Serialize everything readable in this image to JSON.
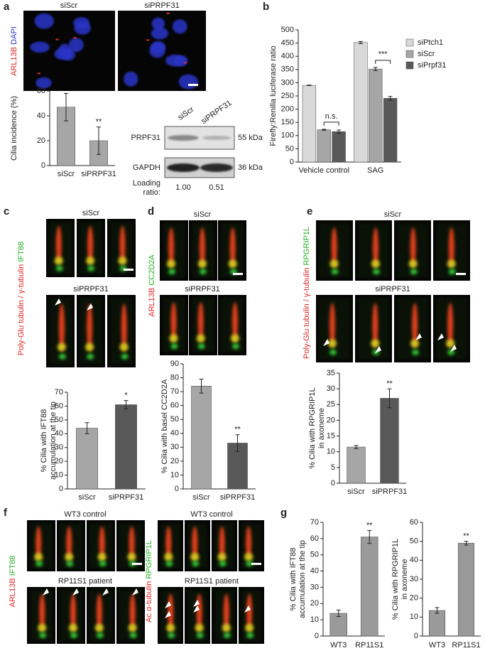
{
  "figure": {
    "a": {
      "letter": "a",
      "stain": [
        "ARL13B",
        "DAPI"
      ],
      "conditions": [
        "siScr",
        "siPRPF31"
      ],
      "blot": {
        "lanes": [
          "siScr",
          "siPRPF31"
        ],
        "rows": [
          [
            "PRPF31",
            "55 kDa"
          ],
          [
            "GAPDH",
            "36 kDa"
          ]
        ],
        "ratio_label": [
          "Loading",
          "ratio:"
        ],
        "ratios": [
          "1.00",
          "0.51"
        ]
      }
    },
    "b": {
      "letter": "b"
    },
    "c": {
      "letter": "c",
      "stain": [
        "Poly-Glu tubulin / γ-tubulin",
        "IFT88"
      ],
      "conditions": [
        "siScr",
        "siPRPF31"
      ]
    },
    "d": {
      "letter": "d",
      "stain": [
        "ARL13B",
        "CC2D2A"
      ],
      "conditions": [
        "siScr",
        "siPRPF31"
      ]
    },
    "e": {
      "letter": "e",
      "stain": [
        "Poly-Glu tubulin / γ-tubulin",
        "RPGRIP1L"
      ],
      "conditions": [
        "siScr",
        "siPRPF31"
      ]
    },
    "f": {
      "letter": "f",
      "left": {
        "stain": [
          "ARL13B",
          "IFT88"
        ],
        "conditions": [
          "WT3 control",
          "RP11S1 patient"
        ]
      },
      "right": {
        "stain": [
          "Ac α-tubulin",
          "RPGRIP1L"
        ],
        "conditions": [
          "WT3 control",
          "RP11S1 patient"
        ]
      }
    },
    "g": {
      "letter": "g"
    }
  },
  "chart_data": [
    {
      "type": "bar",
      "ylabel": [
        "Cilia incidence (%)"
      ],
      "categories": [
        "siScr",
        "siPRPF31"
      ],
      "values": [
        47,
        20
      ],
      "errors": [
        11,
        11
      ],
      "colors": [
        "#a6a6a6",
        "#a6a6a6"
      ],
      "ylim": [
        0,
        60
      ],
      "yticks": [
        0,
        20,
        40,
        60
      ],
      "annotation": "**"
    },
    {
      "type": "grouped-bar",
      "ylabel": [
        "Firefly:Renilla luciferase ratio"
      ],
      "categories": [
        "Vehicle control",
        "SAG"
      ],
      "series": [
        {
          "name": "siPtch1",
          "color": "#d9d9d9",
          "values": [
            290,
            452
          ],
          "errors": [
            1,
            4
          ]
        },
        {
          "name": "siScr",
          "color": "#a6a6a6",
          "values": [
            122,
            352
          ],
          "errors": [
            2,
            6
          ]
        },
        {
          "name": "siPrpf31",
          "color": "#595959",
          "values": [
            115,
            241
          ],
          "errors": [
            6,
            7
          ]
        }
      ],
      "ylim": [
        0,
        500
      ],
      "yticks": [
        0,
        50,
        100,
        150,
        200,
        250,
        300,
        350,
        400,
        450,
        500
      ],
      "annotations": [
        "n.s.",
        "***"
      ]
    },
    {
      "type": "bar",
      "ylabel": [
        "% Cilia with IFT88",
        "accumulation at the tip"
      ],
      "categories": [
        "siScr",
        "siPRPF31"
      ],
      "values": [
        44,
        61
      ],
      "errors": [
        4,
        3
      ],
      "colors": [
        "#a6a6a6",
        "#595959"
      ],
      "ylim": [
        0,
        70
      ],
      "yticks": [
        0,
        10,
        20,
        30,
        40,
        50,
        60,
        70
      ],
      "annotation": "*"
    },
    {
      "type": "bar",
      "ylabel": [
        "% Cilia with basel CC2D2A"
      ],
      "categories": [
        "siScr",
        "siPRPF31"
      ],
      "values": [
        74,
        33
      ],
      "errors": [
        5,
        6
      ],
      "colors": [
        "#a6a6a6",
        "#595959"
      ],
      "ylim": [
        0,
        90
      ],
      "yticks": [
        0,
        10,
        20,
        30,
        40,
        50,
        60,
        70,
        80,
        90
      ],
      "annotation": "**"
    },
    {
      "type": "bar",
      "ylabel": [
        "% Cilia with RPGRIP1L",
        "in axoneme"
      ],
      "categories": [
        "siScr",
        "siPRPF31"
      ],
      "values": [
        11.5,
        27
      ],
      "errors": [
        0.5,
        3
      ],
      "colors": [
        "#a6a6a6",
        "#595959"
      ],
      "ylim": [
        0,
        35
      ],
      "yticks": [
        0,
        5,
        10,
        15,
        20,
        25,
        30,
        35
      ],
      "annotation": "**"
    },
    {
      "type": "bar",
      "ylabel": [
        "% Cilia with IFT88",
        "accumulation at the tip"
      ],
      "categories": [
        "WT3",
        "RP11S1"
      ],
      "values": [
        14,
        61
      ],
      "errors": [
        2,
        4
      ],
      "colors": [
        "#9a9a9a",
        "#9a9a9a"
      ],
      "ylim": [
        0,
        70
      ],
      "yticks": [
        0,
        10,
        20,
        30,
        40,
        50,
        60,
        70
      ],
      "annotation": "**"
    },
    {
      "type": "bar",
      "ylabel": [
        "% Cilia with RPGRIP1L",
        "in axoneme"
      ],
      "categories": [
        "WT3",
        "RP11S1"
      ],
      "values": [
        13.5,
        49
      ],
      "errors": [
        1.5,
        1
      ],
      "colors": [
        "#9a9a9a",
        "#9a9a9a"
      ],
      "ylim": [
        0,
        60
      ],
      "yticks": [
        0,
        10,
        20,
        30,
        40,
        50,
        60
      ],
      "annotation": "**"
    }
  ]
}
